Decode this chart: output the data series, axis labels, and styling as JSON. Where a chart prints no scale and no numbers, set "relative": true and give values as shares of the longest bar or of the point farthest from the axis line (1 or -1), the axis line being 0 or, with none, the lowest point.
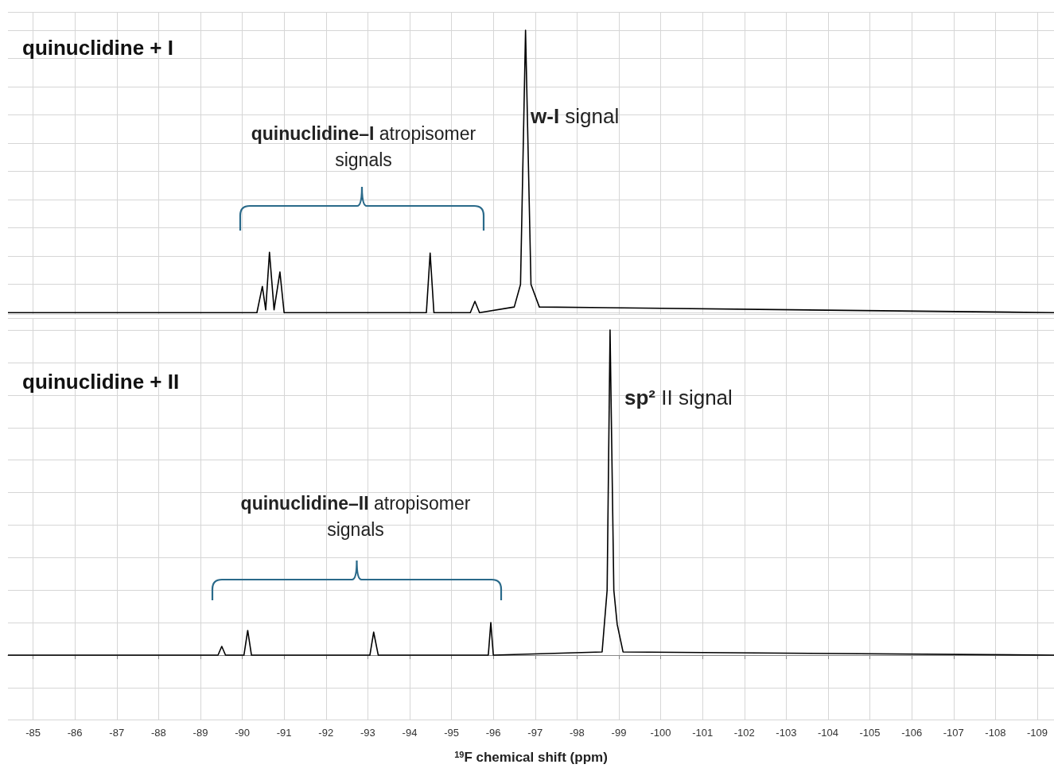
{
  "chart_data": [
    {
      "type": "line",
      "relative": true,
      "xlim": [
        -84.4,
        -109.4
      ],
      "xticks": [
        -85,
        -86,
        -87,
        -88,
        -89,
        -90,
        -91,
        -92,
        -93,
        -94,
        -95,
        -96,
        -97,
        -98,
        -99,
        -100,
        -101,
        -102,
        -103,
        -104,
        -105,
        -106,
        -107,
        -108,
        -109
      ],
      "tick_labels": false,
      "grid": true,
      "annotations": [
        "quinuclidine + I",
        "quinuclidine–I atropisomer signals",
        "w-I signal"
      ],
      "series": [
        {
          "color": "#000000",
          "x": [
            -84.4,
            -90.35,
            -90.48,
            -90.56,
            -90.65,
            -90.76,
            -90.9,
            -91.0,
            -94.4,
            -94.49,
            -94.58,
            -95.45,
            -95.56,
            -95.67,
            -96.5,
            -96.65,
            -96.77,
            -96.9,
            -97.1,
            -109.4
          ],
          "values": [
            0,
            0,
            0.093,
            0.01,
            0.214,
            0.01,
            0.144,
            0,
            0,
            0.211,
            0,
            0,
            0.04,
            0,
            0.02,
            0.1,
            1,
            0.1,
            0.02,
            0
          ]
        }
      ]
    },
    {
      "type": "line",
      "relative": true,
      "xlim": [
        -84.4,
        -109.4
      ],
      "xticks": [
        -85,
        -86,
        -87,
        -88,
        -89,
        -90,
        -91,
        -92,
        -93,
        -94,
        -95,
        -96,
        -97,
        -98,
        -99,
        -100,
        -101,
        -102,
        -103,
        -104,
        -105,
        -106,
        -107,
        -108,
        -109
      ],
      "tick_labels": "x",
      "grid": true,
      "xlabel": "$^{19}$F chemical shift (ppm)",
      "annotations": [
        "quinuclidine + II",
        "quinuclidine–II atropisomer signals",
        "sp² II signal"
      ],
      "series": [
        {
          "color": "#000000",
          "x": [
            -84.4,
            -89.42,
            -89.51,
            -89.6,
            -90.04,
            -90.13,
            -90.22,
            -93.05,
            -93.14,
            -93.25,
            -95.88,
            -95.94,
            -96.0,
            -98.6,
            -98.72,
            -98.79,
            -98.88,
            -98.96,
            -99.1,
            -109.4
          ],
          "values": [
            0,
            0,
            0.027,
            0,
            0,
            0.076,
            0,
            0,
            0.071,
            0,
            0,
            0.1,
            0,
            0.01,
            0.2,
            1,
            0.2,
            0.095,
            0.01,
            0
          ]
        }
      ]
    }
  ]
}
